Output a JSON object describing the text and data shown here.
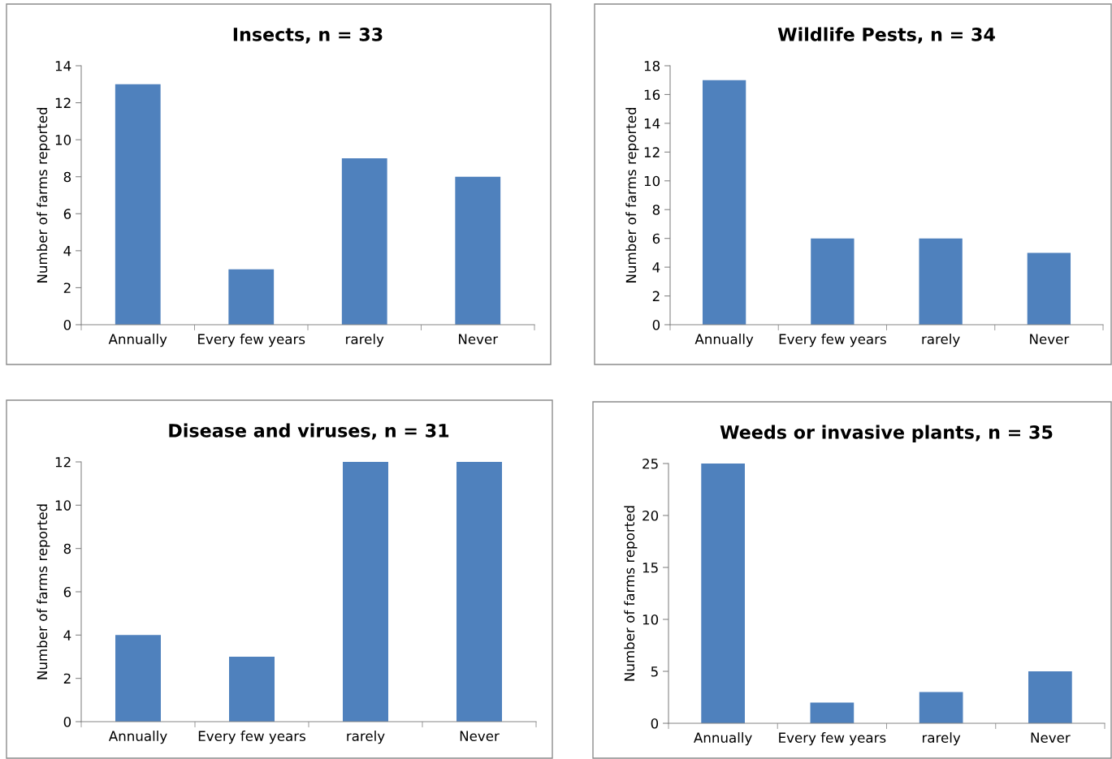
{
  "chart_data": [
    {
      "type": "bar",
      "title": "Insects, n = 33",
      "ylabel": "Number of farms reported",
      "categories": [
        "Annually",
        "Every few years",
        "rarely",
        "Never"
      ],
      "values": [
        13,
        3,
        9,
        8
      ],
      "color": "#4f81bd",
      "ylim": [
        0,
        14
      ],
      "yticks": [
        0,
        2,
        4,
        6,
        8,
        10,
        12,
        14
      ],
      "grid": false,
      "legend": false
    },
    {
      "type": "bar",
      "title": "Wildlife Pests, n = 34",
      "ylabel": "Number of farms reported",
      "categories": [
        "Annually",
        "Every few years",
        "rarely",
        "Never"
      ],
      "values": [
        17,
        6,
        6,
        5
      ],
      "color": "#4f81bd",
      "ylim": [
        0,
        18
      ],
      "yticks": [
        0,
        2,
        4,
        6,
        8,
        10,
        12,
        14,
        16,
        18
      ],
      "grid": false,
      "legend": false
    },
    {
      "type": "bar",
      "title": "Disease and viruses, n = 31",
      "ylabel": "Number of farms reported",
      "categories": [
        "Annually",
        "Every few years",
        "rarely",
        "Never"
      ],
      "values": [
        4,
        3,
        12,
        12
      ],
      "color": "#4f81bd",
      "ylim": [
        0,
        12
      ],
      "yticks": [
        0,
        2,
        4,
        6,
        8,
        10,
        12
      ],
      "grid": false,
      "legend": false
    },
    {
      "type": "bar",
      "title": "Weeds or invasive plants, n = 35",
      "ylabel": "Number of farms reported",
      "categories": [
        "Annually",
        "Every few years",
        "rarely",
        "Never"
      ],
      "values": [
        25,
        2,
        3,
        5
      ],
      "color": "#4f81bd",
      "ylim": [
        0,
        25
      ],
      "yticks": [
        0,
        5,
        10,
        15,
        20,
        25
      ],
      "grid": false,
      "legend": false
    }
  ]
}
